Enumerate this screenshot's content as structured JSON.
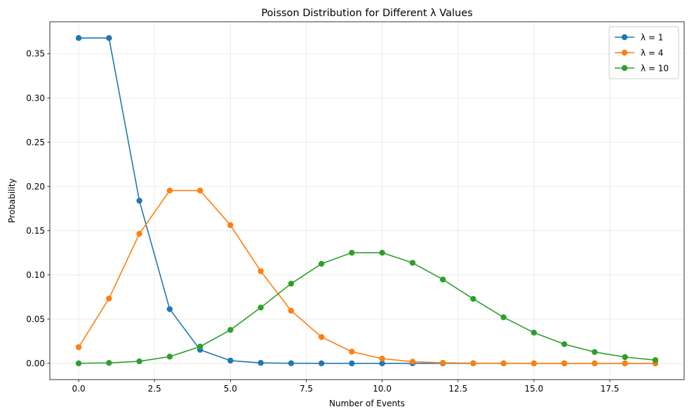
{
  "chart_data": {
    "type": "line",
    "title": "Poisson Distribution for Different λ Values",
    "xlabel": "Number of Events",
    "ylabel": "Probability",
    "xlim": [
      -0.95,
      19.95
    ],
    "ylim": [
      -0.0184,
      0.3863
    ],
    "x_ticks": [
      0.0,
      2.5,
      5.0,
      7.5,
      10.0,
      12.5,
      15.0,
      17.5
    ],
    "x_tick_labels": [
      "0.0",
      "2.5",
      "5.0",
      "7.5",
      "10.0",
      "12.5",
      "15.0",
      "17.5"
    ],
    "y_ticks": [
      0.0,
      0.05,
      0.1,
      0.15,
      0.2,
      0.25,
      0.3,
      0.35
    ],
    "y_tick_labels": [
      "0.00",
      "0.05",
      "0.10",
      "0.15",
      "0.20",
      "0.25",
      "0.30",
      "0.35"
    ],
    "grid": true,
    "legend_position": "top-right",
    "x": [
      0,
      1,
      2,
      3,
      4,
      5,
      6,
      7,
      8,
      9,
      10,
      11,
      12,
      13,
      14,
      15,
      16,
      17,
      18,
      19
    ],
    "series": [
      {
        "name": "λ = 1",
        "color": "#1f77b4",
        "values": [
          0.3679,
          0.3679,
          0.1839,
          0.0613,
          0.0153,
          0.0031,
          0.0005,
          0.0001,
          0.0,
          0.0,
          0.0,
          0.0,
          0.0,
          0.0,
          0.0,
          0.0,
          0.0,
          0.0,
          0.0,
          0.0
        ]
      },
      {
        "name": "λ = 4",
        "color": "#ff7f0e",
        "values": [
          0.0183,
          0.0733,
          0.1465,
          0.1954,
          0.1954,
          0.1563,
          0.1042,
          0.0595,
          0.0298,
          0.0132,
          0.0053,
          0.0019,
          0.0006,
          0.0002,
          0.0001,
          0.0,
          0.0,
          0.0,
          0.0,
          0.0
        ]
      },
      {
        "name": "λ = 10",
        "color": "#2ca02c",
        "values": [
          0.0,
          0.0005,
          0.0023,
          0.0076,
          0.0189,
          0.0378,
          0.0631,
          0.0901,
          0.1126,
          0.1251,
          0.1251,
          0.1137,
          0.0948,
          0.0729,
          0.0521,
          0.0347,
          0.0217,
          0.0128,
          0.0071,
          0.0037
        ]
      }
    ]
  }
}
